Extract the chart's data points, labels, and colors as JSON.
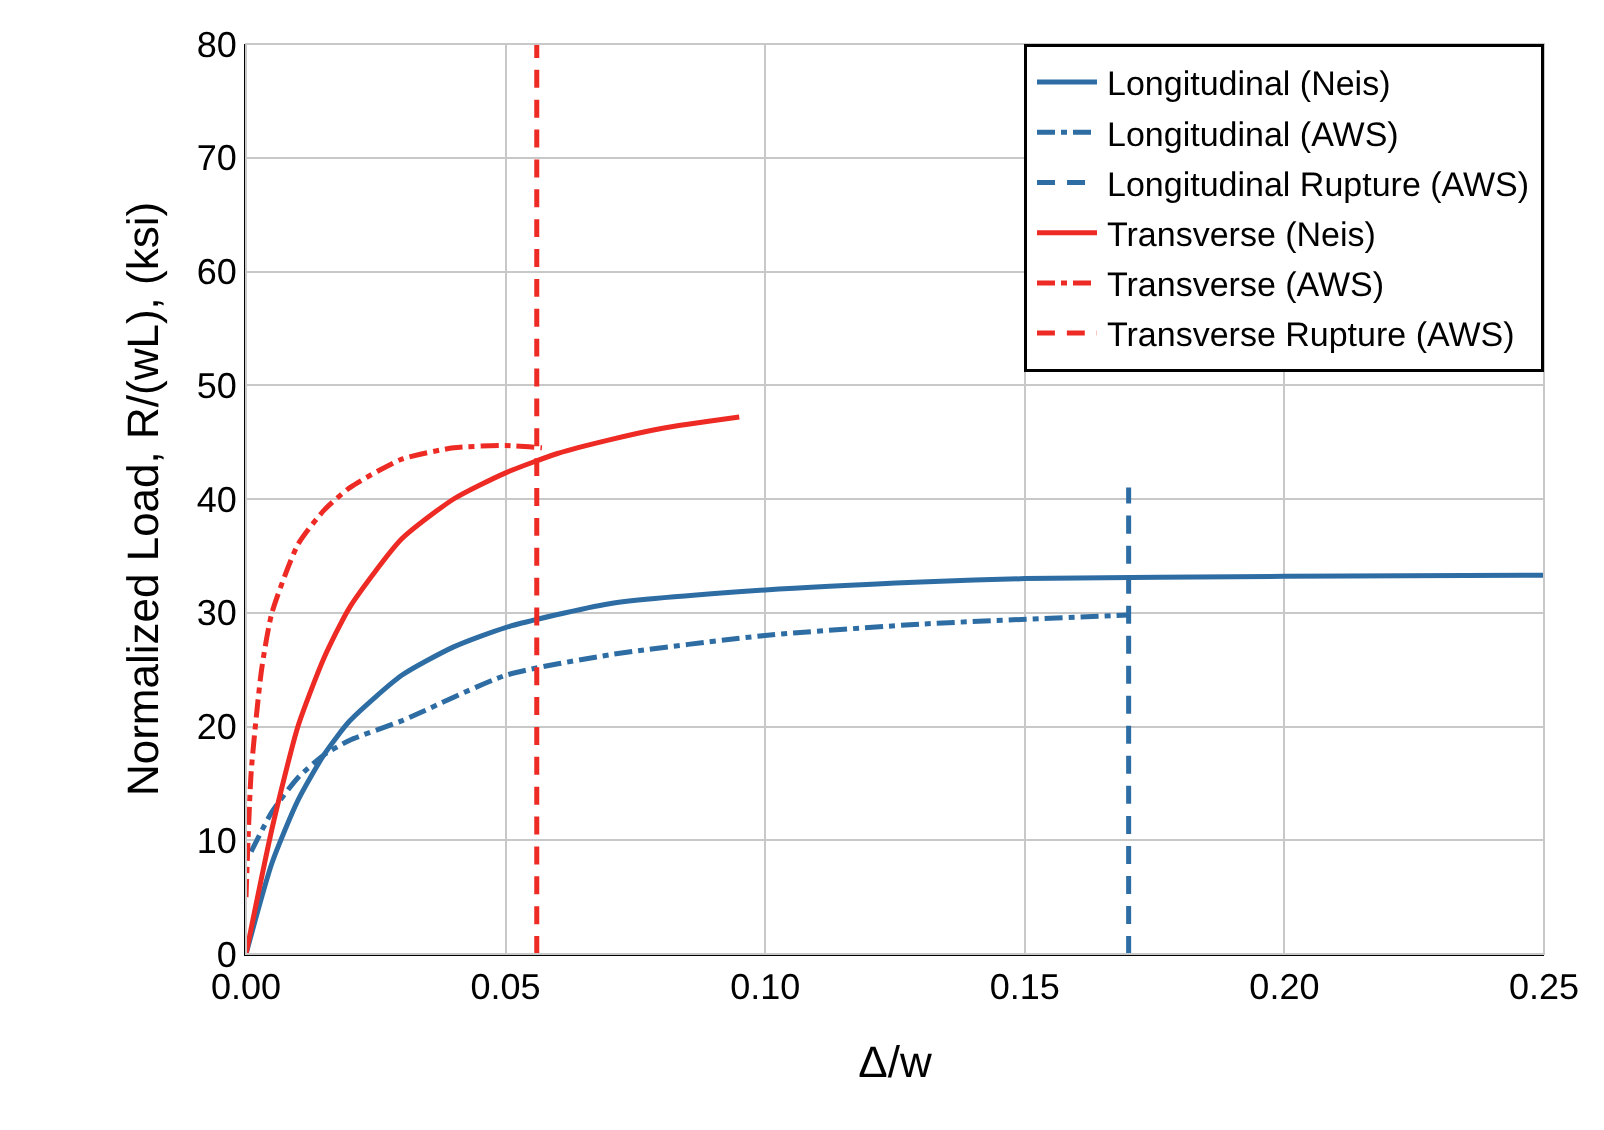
{
  "chart_data": {
    "type": "line",
    "xlabel": "Δ/w",
    "ylabel": "Normalized Load, R/(wL), (ksi)",
    "xlim": [
      0,
      0.25
    ],
    "xticks": [
      {
        "value": 0,
        "label": "0.00"
      },
      {
        "value": 0.05,
        "label": "0.05"
      },
      {
        "value": 0.1,
        "label": "0.10"
      },
      {
        "value": 0.15,
        "label": "0.15"
      },
      {
        "value": 0.2,
        "label": "0.20"
      },
      {
        "value": 0.25,
        "label": "0.25"
      }
    ],
    "ylim": [
      0,
      80
    ],
    "yticks": [
      0,
      10,
      20,
      30,
      40,
      50,
      60,
      70,
      80
    ],
    "grid": true,
    "legend": "top right",
    "marker": "none",
    "series": [
      {
        "name": "Longitudinal (Neis)",
        "color": "#2e6da4",
        "line_style": "solid",
        "x": [
          0,
          0.005,
          0.01,
          0.015,
          0.02,
          0.03,
          0.04,
          0.05,
          0.07,
          0.1,
          0.13,
          0.15,
          0.2,
          0.25
        ],
        "values": [
          0,
          8,
          13.5,
          17.5,
          20.5,
          24.5,
          27,
          28.7,
          30.8,
          32,
          32.7,
          33,
          33.2,
          33.3
        ]
      },
      {
        "name": "Longitudinal (AWS)",
        "color": "#2e6da4",
        "line_style": "dashdot",
        "x": [
          0.001,
          0.005,
          0.01,
          0.015,
          0.02,
          0.03,
          0.05,
          0.07,
          0.1,
          0.13,
          0.17
        ],
        "values": [
          9,
          12.5,
          15.5,
          17.5,
          18.8,
          20.5,
          24.5,
          26.3,
          28,
          29,
          29.8
        ]
      },
      {
        "name": "Longitudinal Rupture (AWS)",
        "color": "#2e6da4",
        "line_style": "dashed",
        "x": [
          0.17,
          0.17
        ],
        "values": [
          0,
          41
        ]
      },
      {
        "name": "Transverse (Neis)",
        "color": "#ee2a24",
        "line_style": "solid",
        "x": [
          0,
          0.005,
          0.01,
          0.015,
          0.02,
          0.03,
          0.04,
          0.05,
          0.06,
          0.07,
          0.08,
          0.095
        ],
        "values": [
          0,
          11,
          20,
          26,
          30.5,
          36.5,
          40,
          42.3,
          44,
          45.2,
          46.2,
          47.2
        ]
      },
      {
        "name": "Transverse (AWS)",
        "color": "#ee2a24",
        "line_style": "dashdot",
        "x": [
          0,
          0.001,
          0.003,
          0.005,
          0.01,
          0.015,
          0.02,
          0.03,
          0.04,
          0.05,
          0.057
        ],
        "values": [
          5,
          16,
          25,
          30,
          36,
          39,
          41,
          43.5,
          44.5,
          44.7,
          44.5
        ]
      },
      {
        "name": "Transverse Rupture (AWS)",
        "color": "#ee2a24",
        "line_style": "dashed",
        "x": [
          0.056,
          0.056
        ],
        "values": [
          0,
          80
        ]
      }
    ]
  }
}
